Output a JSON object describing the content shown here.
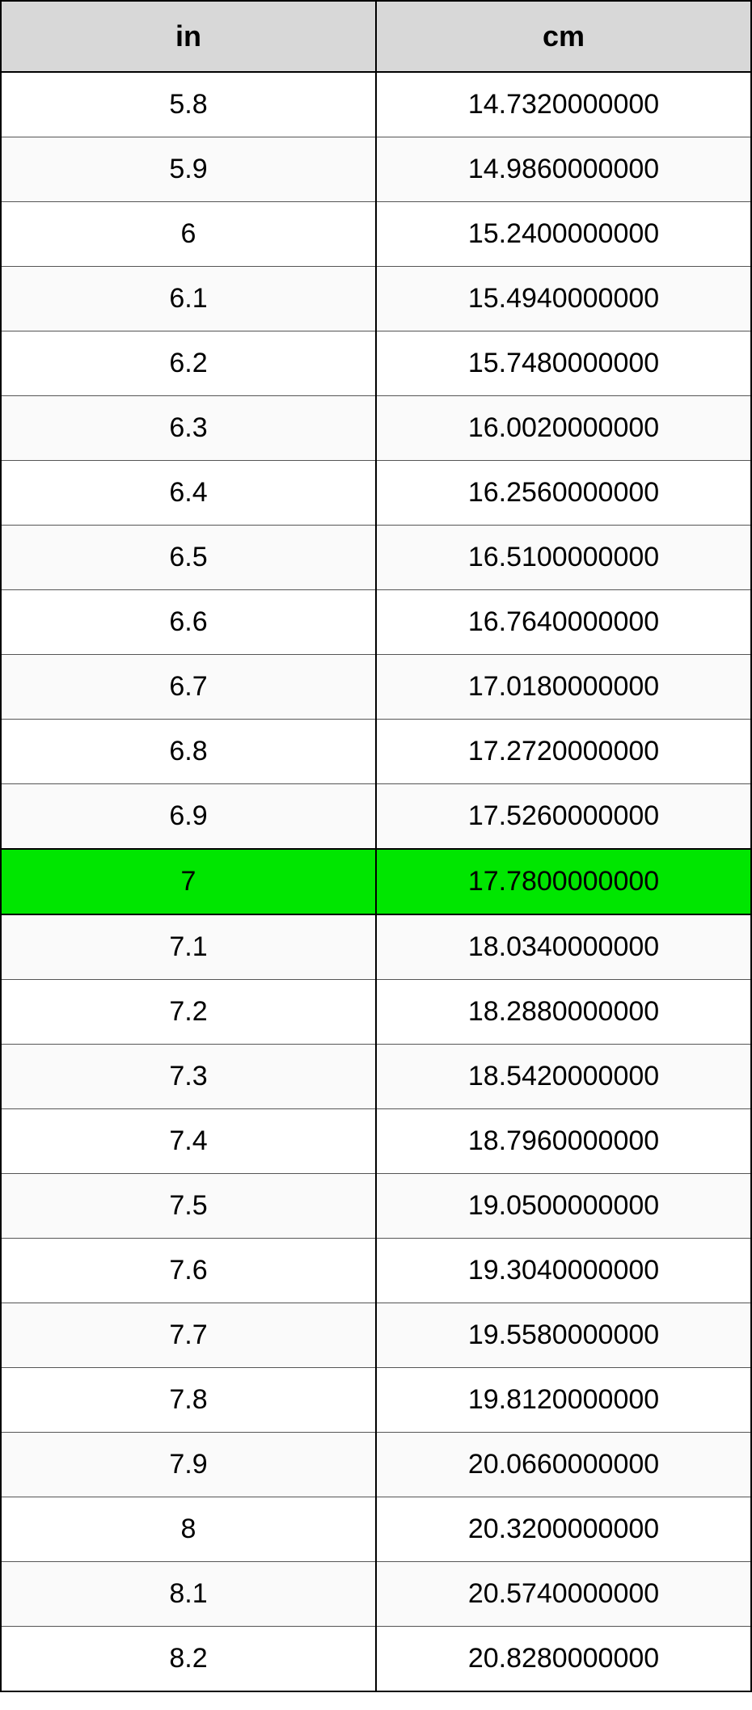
{
  "table": {
    "type": "table",
    "columns": [
      "in",
      "cm"
    ],
    "header_bg": "#d8d8d8",
    "header_fontsize": 36,
    "cell_fontsize": 34,
    "border_color": "#000000",
    "row_alt_bg": "#fafafa",
    "row_bg": "#ffffff",
    "highlight_bg": "#00e600",
    "highlight_index": 12,
    "rows": [
      {
        "in": "5.8",
        "cm": "14.7320000000"
      },
      {
        "in": "5.9",
        "cm": "14.9860000000"
      },
      {
        "in": "6",
        "cm": "15.2400000000"
      },
      {
        "in": "6.1",
        "cm": "15.4940000000"
      },
      {
        "in": "6.2",
        "cm": "15.7480000000"
      },
      {
        "in": "6.3",
        "cm": "16.0020000000"
      },
      {
        "in": "6.4",
        "cm": "16.2560000000"
      },
      {
        "in": "6.5",
        "cm": "16.5100000000"
      },
      {
        "in": "6.6",
        "cm": "16.7640000000"
      },
      {
        "in": "6.7",
        "cm": "17.0180000000"
      },
      {
        "in": "6.8",
        "cm": "17.2720000000"
      },
      {
        "in": "6.9",
        "cm": "17.5260000000"
      },
      {
        "in": "7",
        "cm": "17.7800000000"
      },
      {
        "in": "7.1",
        "cm": "18.0340000000"
      },
      {
        "in": "7.2",
        "cm": "18.2880000000"
      },
      {
        "in": "7.3",
        "cm": "18.5420000000"
      },
      {
        "in": "7.4",
        "cm": "18.7960000000"
      },
      {
        "in": "7.5",
        "cm": "19.0500000000"
      },
      {
        "in": "7.6",
        "cm": "19.3040000000"
      },
      {
        "in": "7.7",
        "cm": "19.5580000000"
      },
      {
        "in": "7.8",
        "cm": "19.8120000000"
      },
      {
        "in": "7.9",
        "cm": "20.0660000000"
      },
      {
        "in": "8",
        "cm": "20.3200000000"
      },
      {
        "in": "8.1",
        "cm": "20.5740000000"
      },
      {
        "in": "8.2",
        "cm": "20.8280000000"
      }
    ]
  }
}
